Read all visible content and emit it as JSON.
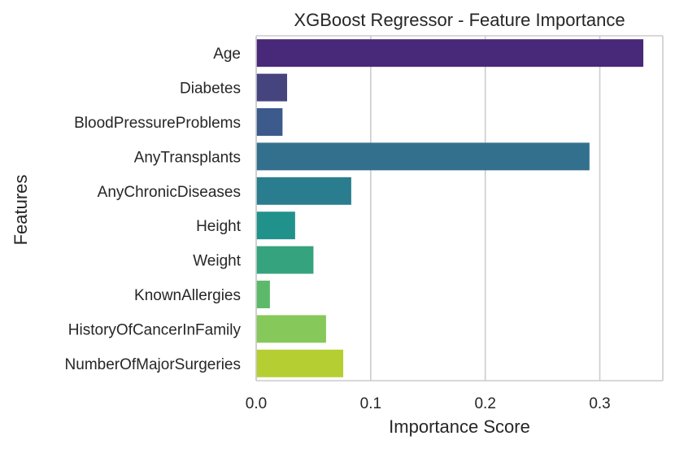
{
  "chart_data": {
    "type": "bar",
    "orientation": "horizontal",
    "title": "XGBoost Regressor - Feature Importance",
    "xlabel": "Importance Score",
    "ylabel": "Features",
    "xlim": [
      0,
      0.355
    ],
    "xticks": [
      "0.0",
      "0.1",
      "0.2",
      "0.3"
    ],
    "xtick_values": [
      0.0,
      0.1,
      0.2,
      0.3
    ],
    "grid": "vertical",
    "categories": [
      "Age",
      "Diabetes",
      "BloodPressureProblems",
      "AnyTransplants",
      "AnyChronicDiseases",
      "Height",
      "Weight",
      "KnownAllergies",
      "HistoryOfCancerInFamily",
      "NumberOfMajorSurgeries"
    ],
    "values": [
      0.338,
      0.027,
      0.023,
      0.291,
      0.083,
      0.034,
      0.05,
      0.012,
      0.061,
      0.076
    ],
    "colors": [
      "#482878",
      "#46447f",
      "#3c5a8b",
      "#33708e",
      "#2a7d8e",
      "#21918c",
      "#34a37e",
      "#5cb96a",
      "#86c85a",
      "#b5ce32"
    ]
  }
}
